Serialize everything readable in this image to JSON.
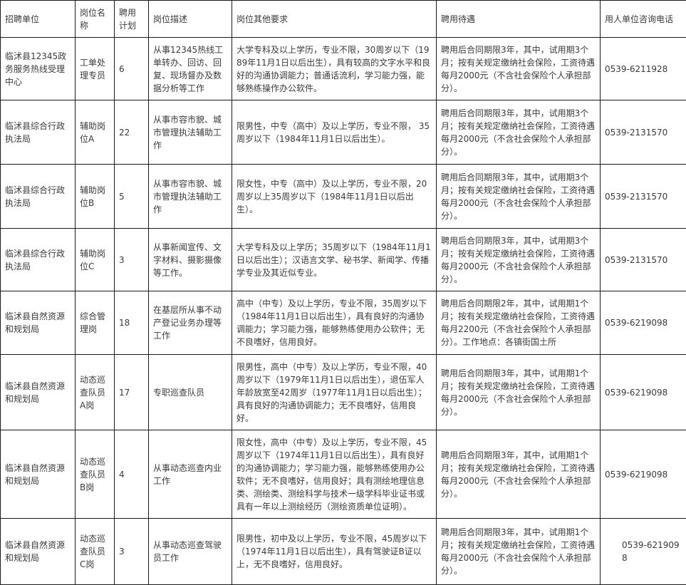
{
  "headers": [
    "招聘单位",
    "岗位名称",
    "聘用计划",
    "岗位描述",
    "岗位其他要求",
    "聘用待遇",
    "用人单位咨询电话"
  ],
  "rows": [
    [
      "临沭县12345政务服务热线受理中心",
      "工单处理专员",
      "6",
      "从事12345热线工单转办、回访、回复、现场督办及数据分析等工作",
      "大学专科及以上学历，专业不限，30周岁以下（1989年11月1日以后出生），具有较高的文字水平和良好的沟通协调能力；普通话流利，学习能力强，能够熟练操作办公软件。",
      "聘用后合同期限3年，其中，试用期3个月；按有关规定缴纳社会保险，工资待遇每月2000元（不含社会保险个人承担部分）。",
      "0539-6211928"
    ],
    [
      "临沭县综合行政执法局",
      "辅助岗位A",
      "22",
      "从事市容市貌、城市管理执法辅助工作",
      "限男性，中专（高中）及以上学历，专业不限， 35周岁以下（1984年11月1日以后出生）。",
      "聘用后合同期限3年，其中，试用期3个月；按有关规定缴纳社会保险，工资待遇每月2000元（不含社会保险个人承担部分）。",
      "0539-2131570"
    ],
    [
      "临沭县综合行政执法局",
      "辅助岗位B",
      "5",
      "从事市容市貌、城市管理执法辅助工作",
      "限女性，中专（高中）及以上学历，专业不限，20周岁以上35周岁以下（1984年11月1日以后出生）。",
      "聘用后合同期限3年，其中，试用期3个月；按有关规定缴纳社会保险，工资待遇每月2000元（不含社会保险个人承担部分）。",
      "0539-2131570"
    ],
    [
      "临沭县综合行政执法局",
      "辅助岗位C",
      "3",
      "从事新闻宣传、文字材料、摄影摄像等工作。",
      "大学专科及以上学历；35周岁以下（1984年11月1日以后出生）；汉语言文学、秘书学、新闻学、传播学专业及其近似专业。",
      "聘用后合同期限3年，其中，试用期3个月；按有关规定缴纳社会保险，工资待遇每月2000元（不含社会保险个人承担部分）。",
      "0539-2131570"
    ],
    [
      "临沭县自然资源和规划局",
      "综合管理岗",
      "18",
      "在基层所从事不动产登记业务办理等工作",
      "高中（中专）及以上学历，专业不限，35周岁以下（1984年11月1日以后出生），具有良好的沟通协调能力；学习能力强，能够熟练使用办公软件；无不良嗜好，信用良好。",
      "聘用后合同期限2年，其中，试用期1个月；按有关规定缴纳社会保险，工资待遇每月2200元（不含社会保险个人承担部分）。工作地点：各镇街国土所",
      "0539-6219098"
    ],
    [
      "临沭县自然资源和规划局",
      "动态巡查队员A岗",
      "17",
      "专职巡查队员",
      "限男性，高中（中专）及以上学历，专业不限，40周岁以下（1979年11月1日以后出生），退伍军人年龄放宽至42周岁（1977年11月1日以后出生）；具有良好的沟通协调能力；无不良嗜好，信用良好。",
      "聘用后合同期限3年，其中，试用期1个月；按有关规定缴纳社会保险，工资待遇每月2000元（不含社会保险个人承担部分）。",
      "0539-6219098"
    ],
    [
      "临沭县自然资源和规划局",
      "动态巡查队员B岗",
      "4",
      "从事动态巡查内业工作",
      "限女性，高中（中专）及以上学历，专业不限，45周岁以下（1974年11月1日以后出生），具有良好的沟通协调能力；学习能力强，能够熟练使用办公软件；无不良嗜好，信用良好；具有测绘地理信息类、测绘类、测绘科学与技术一级学科毕业证书或具有一年以上测绘经历（测绘资质单位证明）。",
      "聘用后合同期限3年，其中，试用期1个月；按有关规定缴纳社会保险，工资待遇每月2000元（不含社会保险个人承担部分）。",
      "0539-6219098"
    ],
    [
      "临沭县自然资源和规划局",
      "动态巡查队员C岗",
      "3",
      "从事动态巡查驾驶员工作",
      "限男性，初中及以上学历，专业不限，45周岁以下（1974年11月1日以后出生），具有驾驶证B证以上，无不良嗜好，信用良好。",
      "聘用后合同期限3年，其中，试用期1个月；按有关规定缴纳社会保险，工资待遇每月2000元（不含社会保险个人承担部分）。",
      "0539-6219098"
    ]
  ]
}
